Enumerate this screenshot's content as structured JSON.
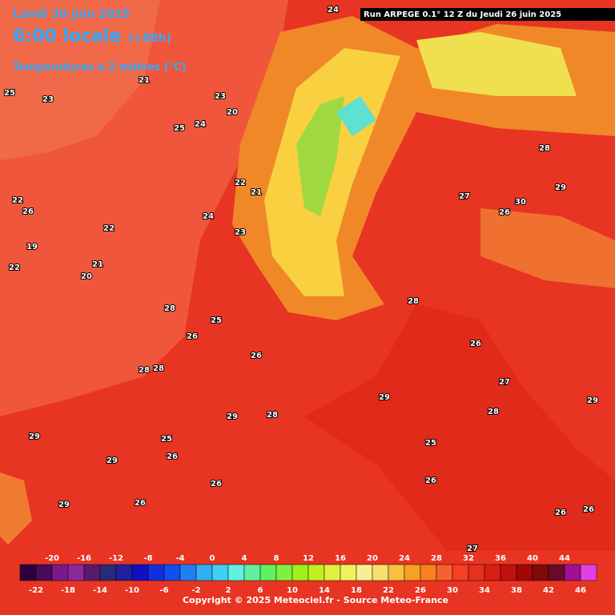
{
  "header": {
    "date": "Lundi 30 juin 2025",
    "time": "6:00 locale",
    "lead": "(+88h)",
    "field": "Températures à 2 mètres (°C)",
    "run": "Run ARPEGE 0.1° 12 Z du Jeudi 26 juin 2025"
  },
  "legend": {
    "top_labels": [
      -20,
      -16,
      -12,
      -8,
      -4,
      0,
      4,
      8,
      12,
      16,
      20,
      24,
      28,
      32,
      36,
      40,
      44
    ],
    "bottom_labels": [
      -22,
      -18,
      -14,
      -10,
      -6,
      -2,
      2,
      6,
      10,
      14,
      18,
      22,
      26,
      30,
      34,
      38,
      42,
      46
    ],
    "colors": [
      "#2a0040",
      "#4a0a5a",
      "#7a1a8a",
      "#8a2a9a",
      "#5a1a6a",
      "#2a2a7a",
      "#2020a0",
      "#1010c0",
      "#1030e0",
      "#1050f0",
      "#2080f0",
      "#30b0f0",
      "#40d0f0",
      "#60f0e0",
      "#60f0a0",
      "#60f060",
      "#80f040",
      "#a0f020",
      "#c0f020",
      "#e0f040",
      "#f0f060",
      "#f8f090",
      "#f8e070",
      "#f8c040",
      "#f8a020",
      "#f88020",
      "#f86030",
      "#f84020",
      "#e83020",
      "#d82010",
      "#c01010",
      "#a00808",
      "#800a0a",
      "#6a0a2a",
      "#a01090",
      "#e040e0"
    ]
  },
  "map_labels": [
    24,
    25,
    23,
    22,
    26,
    21,
    24,
    23,
    20,
    19,
    22,
    21,
    20,
    22,
    25,
    28,
    28,
    28,
    29,
    29,
    29,
    29,
    25,
    26,
    26,
    26,
    26,
    26,
    28,
    29,
    28,
    27,
    26,
    28,
    29,
    30,
    26,
    27,
    28,
    25,
    26,
    27,
    26,
    29,
    26,
    25,
    22,
    21,
    24,
    23
  ],
  "footer": "Copyright © 2025 Meteociel.fr - Source Meteo-France"
}
